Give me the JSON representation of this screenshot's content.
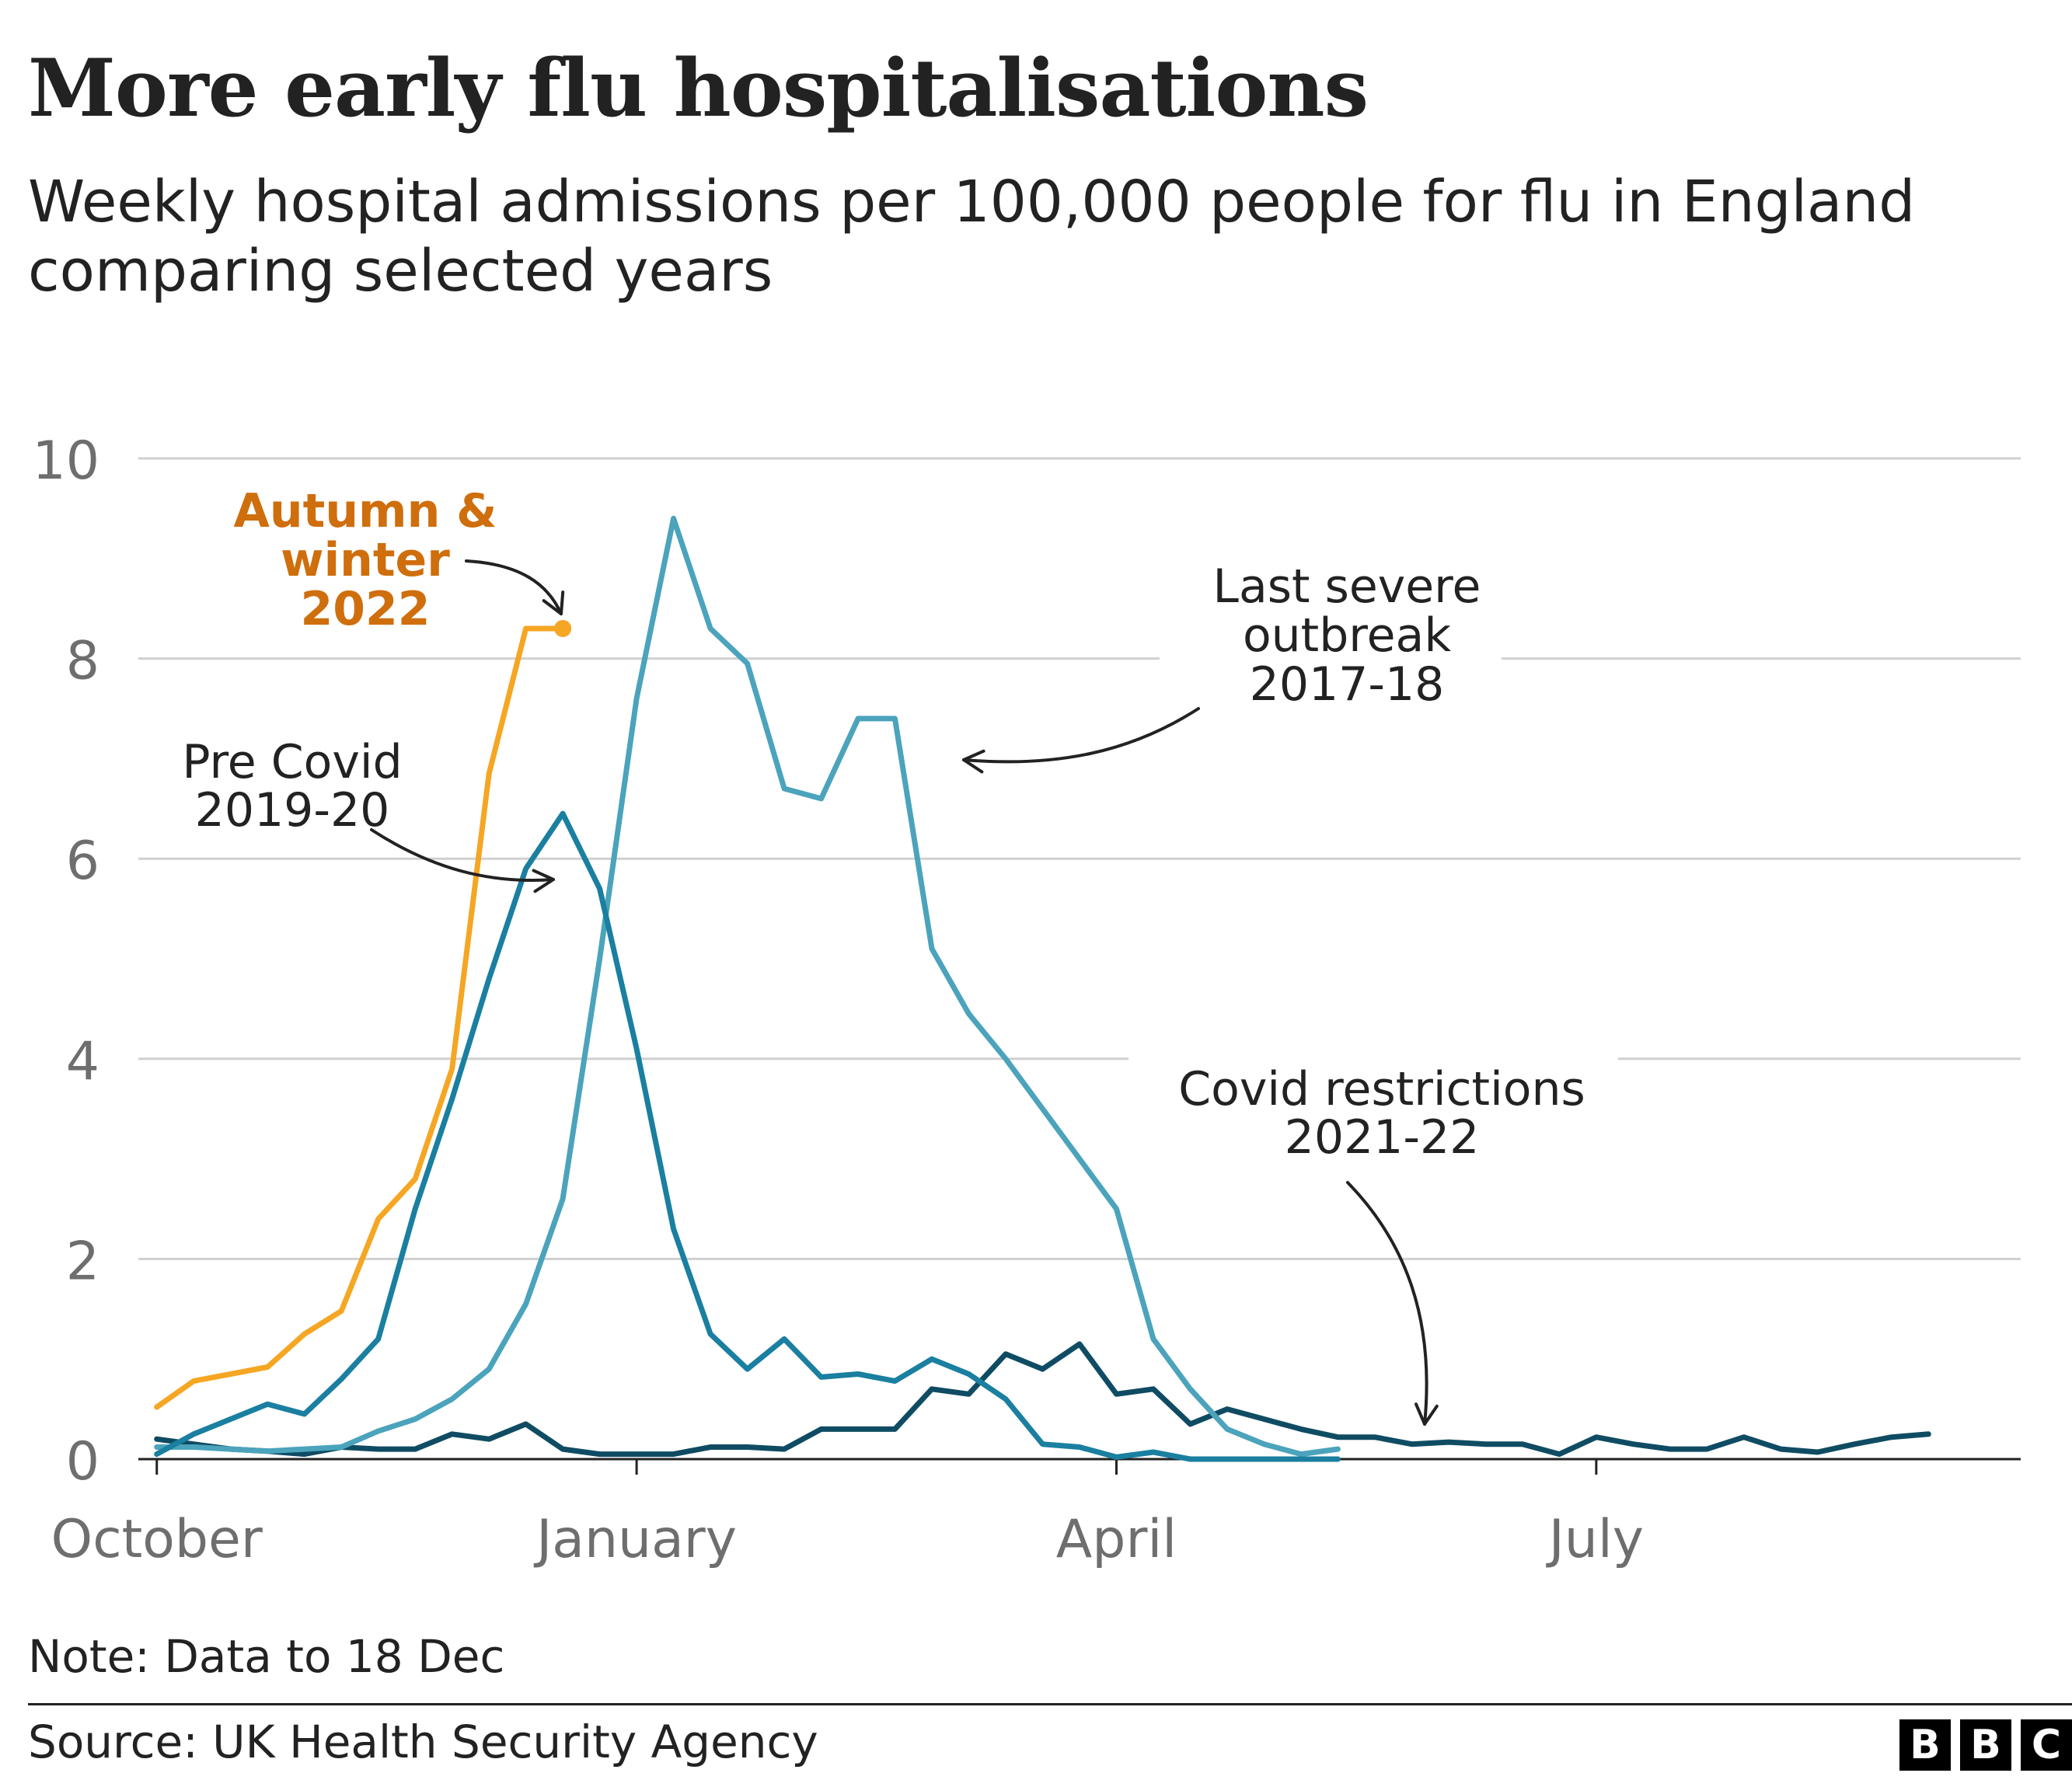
{
  "header": {
    "title": "More early flu hospitalisations",
    "subtitle": "Weekly hospital admissions per 100,000 people for flu in England comparing selected years"
  },
  "footer": {
    "note": "Note: Data to 18 Dec",
    "source": "Source: UK Health Security Agency",
    "logo_letters": [
      "B",
      "B",
      "C"
    ]
  },
  "chart_data": {
    "type": "line",
    "title": "More early flu hospitalisations",
    "subtitle": "Weekly hospital admissions per 100,000 people for flu in England comparing selected years",
    "xlabel": "",
    "ylabel": "",
    "x_unit": "week from start of October",
    "xlim": [
      -0.5,
      50.5
    ],
    "ylim": [
      0,
      10
    ],
    "y_ticks": [
      0,
      2,
      4,
      6,
      8,
      10
    ],
    "x_ticks": [
      {
        "label": "October",
        "x": 0
      },
      {
        "label": "January",
        "x": 13
      },
      {
        "label": "April",
        "x": 26
      },
      {
        "label": "July",
        "x": 39
      }
    ],
    "grid": "horizontal",
    "legend": "none (direct annotations)",
    "series": [
      {
        "name": "Covid restrictions 2021-22",
        "color": "#0f4c63",
        "x": [
          0,
          1,
          2,
          3,
          4,
          5,
          6,
          7,
          8,
          9,
          10,
          11,
          12,
          13,
          14,
          15,
          16,
          17,
          18,
          19,
          20,
          21,
          22,
          23,
          24,
          25,
          26,
          27,
          28,
          29,
          30,
          31,
          32,
          33,
          34,
          35,
          36,
          37,
          38,
          39,
          40,
          41,
          42,
          43,
          44,
          45,
          46,
          47,
          48
        ],
        "values": [
          0.2,
          0.15,
          0.1,
          0.08,
          0.05,
          0.12,
          0.1,
          0.1,
          0.25,
          0.2,
          0.35,
          0.1,
          0.05,
          0.05,
          0.05,
          0.12,
          0.12,
          0.1,
          0.3,
          0.3,
          0.3,
          0.7,
          0.65,
          1.05,
          0.9,
          1.15,
          0.65,
          0.7,
          0.35,
          0.5,
          0.4,
          0.3,
          0.22,
          0.22,
          0.15,
          0.17,
          0.15,
          0.15,
          0.05,
          0.22,
          0.15,
          0.1,
          0.1,
          0.22,
          0.1,
          0.07,
          0.15,
          0.22,
          0.25
        ]
      },
      {
        "name": "Last severe outbreak 2017-18",
        "color": "#4ba3bc",
        "x": [
          0,
          1,
          2,
          3,
          4,
          5,
          6,
          7,
          8,
          9,
          10,
          11,
          12,
          13,
          14,
          15,
          16,
          17,
          18,
          19,
          20,
          21,
          22,
          23,
          24,
          25,
          26,
          27,
          28,
          29,
          30,
          31,
          32
        ],
        "values": [
          0.12,
          0.12,
          0.1,
          0.08,
          0.1,
          0.12,
          0.28,
          0.4,
          0.6,
          0.9,
          1.55,
          2.6,
          5.0,
          7.6,
          9.4,
          8.3,
          7.95,
          6.7,
          6.6,
          7.4,
          7.4,
          5.1,
          4.45,
          4.0,
          3.5,
          3.0,
          2.5,
          1.2,
          0.7,
          0.3,
          0.15,
          0.05,
          0.1
        ]
      },
      {
        "name": "Pre Covid 2019-20",
        "color": "#1a7fa0",
        "x": [
          0,
          1,
          2,
          3,
          4,
          5,
          6,
          7,
          8,
          9,
          10,
          11,
          12,
          13,
          14,
          15,
          16,
          17,
          18,
          19,
          20,
          21,
          22,
          23,
          24,
          25,
          26,
          27,
          28,
          29,
          30,
          31,
          32
        ],
        "values": [
          0.05,
          0.25,
          0.4,
          0.55,
          0.45,
          0.8,
          1.2,
          2.5,
          3.6,
          4.8,
          5.9,
          6.45,
          5.7,
          4.1,
          2.3,
          1.25,
          0.9,
          1.2,
          0.82,
          0.85,
          0.78,
          1.0,
          0.85,
          0.6,
          0.15,
          0.12,
          0.02,
          0.07,
          0.0,
          0.0,
          0.0,
          0.0,
          0.0
        ]
      },
      {
        "name": "Autumn & winter 2022",
        "color": "#f5a623",
        "x": [
          0,
          1,
          2,
          3,
          4,
          5,
          6,
          7,
          8,
          9,
          10,
          11
        ],
        "values": [
          0.52,
          0.78,
          0.85,
          0.92,
          1.25,
          1.48,
          2.4,
          2.8,
          3.9,
          6.85,
          8.3,
          8.3
        ]
      }
    ],
    "annotations": [
      {
        "series": "Autumn & winter 2022",
        "lines": [
          "Autumn &",
          "winter",
          "2022"
        ],
        "color": "#cf6e0c",
        "bold": true
      },
      {
        "series": "Pre Covid 2019-20",
        "lines": [
          "Pre Covid",
          "2019-20"
        ],
        "color": "#222222",
        "bold": false
      },
      {
        "series": "Last severe outbreak 2017-18",
        "lines": [
          "Last severe",
          "outbreak",
          "2017-18"
        ],
        "color": "#222222",
        "bold": false
      },
      {
        "series": "Covid restrictions 2021-22",
        "lines": [
          "Covid restrictions",
          "2021-22"
        ],
        "color": "#222222",
        "bold": false
      }
    ]
  }
}
